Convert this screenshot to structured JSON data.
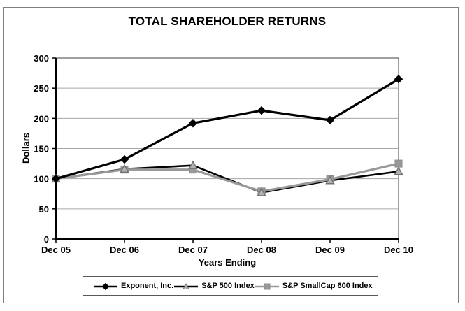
{
  "figure": {
    "title": "TOTAL SHAREHOLDER RETURNS"
  },
  "chart_data": {
    "type": "line",
    "title": "TOTAL SHAREHOLDER RETURNS",
    "xlabel": "Years Ending",
    "ylabel": "Dollars",
    "categories": [
      "Dec 05",
      "Dec 06",
      "Dec 07",
      "Dec 08",
      "Dec 09",
      "Dec 10"
    ],
    "ylim": [
      0,
      300
    ],
    "yticks": [
      0,
      50,
      100,
      150,
      200,
      250,
      300
    ],
    "grid": true,
    "legend_position": "bottom",
    "series": [
      {
        "name": "Exponent, Inc.",
        "values": [
          100,
          132,
          192,
          213,
          197,
          265
        ],
        "color": "#000000",
        "marker": "diamond",
        "marker_fill": "#000000",
        "marker_stroke": "#000000"
      },
      {
        "name": "S&P 500 Index",
        "values": [
          100,
          116,
          122,
          77,
          97,
          112
        ],
        "color": "#000000",
        "marker": "triangle",
        "marker_fill": "#b3b3b3",
        "marker_stroke": "#737373"
      },
      {
        "name": "S&P SmallCap 600 Index",
        "values": [
          100,
          115,
          115,
          79,
          99,
          125
        ],
        "color": "#999999",
        "marker": "square",
        "marker_fill": "#999999",
        "marker_stroke": "#8c8c8c"
      }
    ],
    "colors": {
      "background": "#ffffff",
      "grid": "#a6a6a6",
      "axis": "#000000",
      "plot_border": "#404040",
      "figure_border": "#7f7f7f"
    }
  }
}
